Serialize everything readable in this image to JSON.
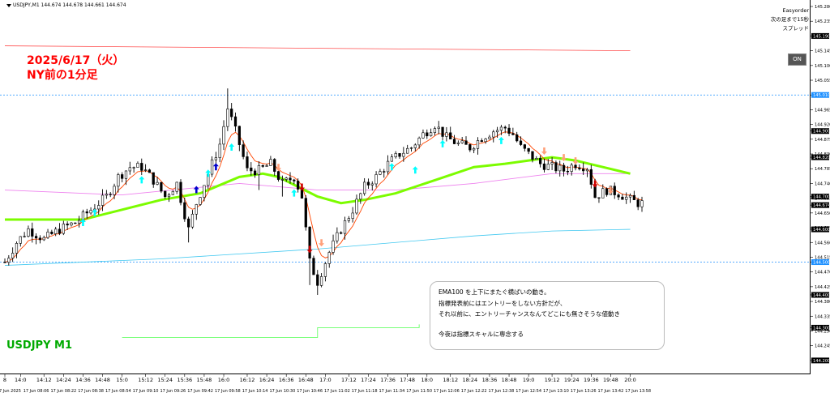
{
  "header": {
    "info": "USDJPY,M1  144.674 144.678 144.661 144.674"
  },
  "ea_panel": {
    "name": "Easyorder",
    "line1": "次の足まで15秒",
    "line2": "スプレッド"
  },
  "annotation": {
    "title_line1": "2025/6/17（火）",
    "title_line2": "NY前の1分足"
  },
  "symbol_label": "USDJPY M1",
  "toggle": {
    "label": "ON"
  },
  "note": {
    "line1": "EMA100 を上下にまたぐ横ばいの動き。",
    "line2": "指標発表前にはエントリーをしない方針だが、",
    "line3": "それ以前に、エントリーチャンスなんてどこにも無さそうな値動き",
    "line4": "今夜は指標スキャルに専念する"
  },
  "colors": {
    "candle": "#000000",
    "ema_fast": "#ff4500",
    "ema100": "#7cfc00",
    "ma_long": "#ee82ee",
    "red_line": "#ff4d4d",
    "blue_dotted": "#1e90ff",
    "cyan_line": "#40c8f0",
    "green_line": "#66ff66",
    "arrow_cyan": "#00ffff",
    "arrow_blue": "#0000cc",
    "arrow_red": "#cc0000",
    "arrow_salmon": "#ffa07a",
    "annotation_red": "#ff0000",
    "symbol_green": "#00aa00"
  },
  "chart_data": {
    "type": "candlestick",
    "ylim": [
      144.175,
      145.28
    ],
    "xlim": [
      0,
      163
    ],
    "y_ticks": [
      "145.280",
      "145.235",
      "145.190",
      "145.145",
      "145.100",
      "145.055",
      "145.010",
      "144.965",
      "144.920",
      "144.900",
      "144.875",
      "144.830",
      "144.820",
      "144.785",
      "144.740",
      "144.700",
      "144.695",
      "144.674",
      "144.650",
      "144.605",
      "144.600",
      "144.560",
      "144.515",
      "144.500",
      "144.470",
      "144.425",
      "144.400",
      "144.380",
      "144.335",
      "144.300",
      "144.290",
      "144.245",
      "144.200"
    ],
    "y_tag_values": [
      145.19,
      145.01,
      144.9,
      144.82,
      144.7,
      144.674,
      144.6,
      144.5,
      144.4,
      144.3,
      144.2
    ],
    "y_tag_labels": [
      "145.190",
      "145.010",
      "144.900",
      "144.820",
      "144.700",
      "144.674",
      "144.600",
      "144.500",
      "144.400",
      "144.300",
      "144.200"
    ],
    "top_time_labels": [
      {
        "x": 0,
        "label": "8"
      },
      {
        "x": 4,
        "label": "14:0"
      },
      {
        "x": 10,
        "label": "14:12"
      },
      {
        "x": 15,
        "label": "14:24"
      },
      {
        "x": 20,
        "label": "14:36"
      },
      {
        "x": 25,
        "label": "14:48"
      },
      {
        "x": 30,
        "label": "15:0"
      },
      {
        "x": 36,
        "label": "15:12"
      },
      {
        "x": 41,
        "label": "15:24"
      },
      {
        "x": 46,
        "label": "15:36"
      },
      {
        "x": 51,
        "label": "15:48"
      },
      {
        "x": 56,
        "label": "16:0"
      },
      {
        "x": 62,
        "label": "16:12"
      },
      {
        "x": 67,
        "label": "16:24"
      },
      {
        "x": 72,
        "label": "16:36"
      },
      {
        "x": 77,
        "label": "16:48"
      },
      {
        "x": 82,
        "label": "17:0"
      },
      {
        "x": 88,
        "label": "17:12"
      },
      {
        "x": 93,
        "label": "17:24"
      },
      {
        "x": 98,
        "label": "17:36"
      },
      {
        "x": 103,
        "label": "17:48"
      },
      {
        "x": 108,
        "label": "18:0"
      },
      {
        "x": 114,
        "label": "18:12"
      },
      {
        "x": 119,
        "label": "18:24"
      },
      {
        "x": 124,
        "label": "18:36"
      },
      {
        "x": 129,
        "label": "18:48"
      },
      {
        "x": 134,
        "label": "19:0"
      },
      {
        "x": 140,
        "label": "19:12"
      },
      {
        "x": 145,
        "label": "19:24"
      },
      {
        "x": 150,
        "label": "19:36"
      },
      {
        "x": 155,
        "label": "19:48"
      },
      {
        "x": 160,
        "label": "20:0"
      }
    ],
    "bottom_time_labels": [
      {
        "x": 1,
        "label": "17 Jun 2025"
      },
      {
        "x": 8,
        "label": "17 Jun 08:06"
      },
      {
        "x": 15,
        "label": "17 Jun 08:22"
      },
      {
        "x": 22,
        "label": "17 Jun 08:38"
      },
      {
        "x": 29,
        "label": "17 Jun 08:54"
      },
      {
        "x": 36,
        "label": "17 Jun 09:10"
      },
      {
        "x": 43,
        "label": "17 Jun 09:26"
      },
      {
        "x": 50,
        "label": "17 Jun 09:42"
      },
      {
        "x": 57,
        "label": "17 Jun 09:58"
      },
      {
        "x": 64,
        "label": "17 Jun 10:14"
      },
      {
        "x": 71,
        "label": "17 Jun 10:30"
      },
      {
        "x": 78,
        "label": "17 Jun 10:46"
      },
      {
        "x": 85,
        "label": "17 Jun 11:02"
      },
      {
        "x": 92,
        "label": "17 Jun 11:18"
      },
      {
        "x": 99,
        "label": "17 Jun 11:34"
      },
      {
        "x": 106,
        "label": "17 Jun 11:50"
      },
      {
        "x": 113,
        "label": "17 Jun 12:06"
      },
      {
        "x": 120,
        "label": "17 Jun 12:22"
      },
      {
        "x": 127,
        "label": "17 Jun 12:38"
      },
      {
        "x": 134,
        "label": "17 Jun 12:54"
      },
      {
        "x": 141,
        "label": "17 Jun 13:10"
      },
      {
        "x": 148,
        "label": "17 Jun 13:26"
      },
      {
        "x": 155,
        "label": "17 Jun 13:42"
      },
      {
        "x": 162,
        "label": "17 Jun 13:58"
      }
    ],
    "close_anchors": [
      [
        0,
        144.5
      ],
      [
        3,
        144.56
      ],
      [
        6,
        144.6
      ],
      [
        10,
        144.57
      ],
      [
        14,
        144.6
      ],
      [
        18,
        144.62
      ],
      [
        22,
        144.66
      ],
      [
        26,
        144.7
      ],
      [
        29,
        144.76
      ],
      [
        32,
        144.79
      ],
      [
        35,
        144.79
      ],
      [
        38,
        144.75
      ],
      [
        41,
        144.7
      ],
      [
        44,
        144.74
      ],
      [
        47,
        144.6
      ],
      [
        49,
        144.68
      ],
      [
        51,
        144.74
      ],
      [
        53,
        144.8
      ],
      [
        55,
        144.86
      ],
      [
        57,
        144.97
      ],
      [
        59,
        144.9
      ],
      [
        62,
        144.78
      ],
      [
        65,
        144.78
      ],
      [
        68,
        144.8
      ],
      [
        71,
        144.74
      ],
      [
        74,
        144.76
      ],
      [
        76,
        144.7
      ],
      [
        78,
        144.5
      ],
      [
        80,
        144.44
      ],
      [
        83,
        144.53
      ],
      [
        86,
        144.6
      ],
      [
        89,
        144.66
      ],
      [
        92,
        144.73
      ],
      [
        95,
        144.76
      ],
      [
        98,
        144.8
      ],
      [
        101,
        144.83
      ],
      [
        104,
        144.85
      ],
      [
        107,
        144.89
      ],
      [
        110,
        144.92
      ],
      [
        113,
        144.88
      ],
      [
        116,
        144.86
      ],
      [
        119,
        144.85
      ],
      [
        122,
        144.88
      ],
      [
        125,
        144.9
      ],
      [
        128,
        144.91
      ],
      [
        130,
        144.89
      ],
      [
        132,
        144.85
      ],
      [
        134,
        144.83
      ],
      [
        137,
        144.8
      ],
      [
        140,
        144.79
      ],
      [
        143,
        144.78
      ],
      [
        146,
        144.8
      ],
      [
        149,
        144.79
      ],
      [
        151,
        144.7
      ],
      [
        154,
        144.72
      ],
      [
        157,
        144.71
      ],
      [
        160,
        144.69
      ],
      [
        162,
        144.68
      ]
    ],
    "spikes": [
      [
        47,
        144.56
      ],
      [
        57,
        145.03
      ],
      [
        59,
        144.95
      ],
      [
        78,
        144.43
      ],
      [
        80,
        144.4
      ],
      [
        65,
        144.72
      ],
      [
        71,
        144.7
      ]
    ],
    "overlays": {
      "ema100": [
        [
          0,
          144.63
        ],
        [
          10,
          144.63
        ],
        [
          20,
          144.63
        ],
        [
          30,
          144.66
        ],
        [
          40,
          144.69
        ],
        [
          50,
          144.71
        ],
        [
          60,
          144.76
        ],
        [
          66,
          144.77
        ],
        [
          70,
          144.76
        ],
        [
          75,
          144.73
        ],
        [
          80,
          144.7
        ],
        [
          86,
          144.68
        ],
        [
          92,
          144.69
        ],
        [
          100,
          144.71
        ],
        [
          110,
          144.75
        ],
        [
          120,
          144.79
        ],
        [
          128,
          144.8
        ],
        [
          134,
          144.81
        ],
        [
          140,
          144.82
        ],
        [
          146,
          144.81
        ],
        [
          153,
          144.79
        ],
        [
          160,
          144.77
        ]
      ],
      "ma_long": [
        [
          0,
          144.72
        ],
        [
          30,
          144.705
        ],
        [
          60,
          144.74
        ],
        [
          80,
          144.72
        ],
        [
          100,
          144.72
        ],
        [
          120,
          144.74
        ],
        [
          140,
          144.77
        ],
        [
          160,
          144.77
        ]
      ],
      "red_line": [
        [
          0,
          145.16
        ],
        [
          160,
          145.145
        ]
      ],
      "blue_dotted_1": 145.01,
      "blue_dotted_2": 144.5,
      "cyan_line": [
        [
          0,
          144.49
        ],
        [
          40,
          144.51
        ],
        [
          80,
          144.54
        ],
        [
          100,
          144.56
        ],
        [
          120,
          144.58
        ],
        [
          140,
          144.595
        ],
        [
          160,
          144.6
        ]
      ],
      "green_line": [
        [
          30,
          144.27
        ],
        [
          80,
          144.3
        ],
        [
          106,
          144.31
        ]
      ]
    },
    "signals": [
      {
        "x": 20,
        "y": 144.62,
        "type": "up",
        "color": "cyan"
      },
      {
        "x": 23,
        "y": 144.65,
        "type": "up",
        "color": "cyan"
      },
      {
        "x": 35,
        "y": 144.75,
        "type": "up",
        "color": "cyan"
      },
      {
        "x": 49,
        "y": 144.72,
        "type": "up",
        "color": "blue"
      },
      {
        "x": 52,
        "y": 144.77,
        "type": "up",
        "color": "cyan"
      },
      {
        "x": 54,
        "y": 144.79,
        "type": "up",
        "color": "blue"
      },
      {
        "x": 58,
        "y": 144.85,
        "type": "up",
        "color": "cyan"
      },
      {
        "x": 74,
        "y": 144.71,
        "type": "up",
        "color": "cyan"
      },
      {
        "x": 99,
        "y": 144.79,
        "type": "up",
        "color": "cyan"
      },
      {
        "x": 105,
        "y": 144.78,
        "type": "up",
        "color": "cyan"
      },
      {
        "x": 112,
        "y": 144.86,
        "type": "up",
        "color": "cyan"
      },
      {
        "x": 127,
        "y": 144.87,
        "type": "up",
        "color": "cyan"
      },
      {
        "x": 76,
        "y": 144.73,
        "type": "down",
        "color": "red"
      },
      {
        "x": 78,
        "y": 144.54,
        "type": "down",
        "color": "red"
      },
      {
        "x": 81,
        "y": 144.56,
        "type": "down",
        "color": "salmon"
      },
      {
        "x": 70,
        "y": 144.79,
        "type": "down",
        "color": "salmon"
      },
      {
        "x": 138,
        "y": 144.84,
        "type": "down",
        "color": "salmon"
      },
      {
        "x": 143,
        "y": 144.82,
        "type": "down",
        "color": "salmon"
      },
      {
        "x": 146,
        "y": 144.81,
        "type": "down",
        "color": "salmon"
      },
      {
        "x": 151,
        "y": 144.74,
        "type": "down",
        "color": "red"
      },
      {
        "x": 155,
        "y": 144.72,
        "type": "down",
        "color": "salmon"
      }
    ]
  }
}
